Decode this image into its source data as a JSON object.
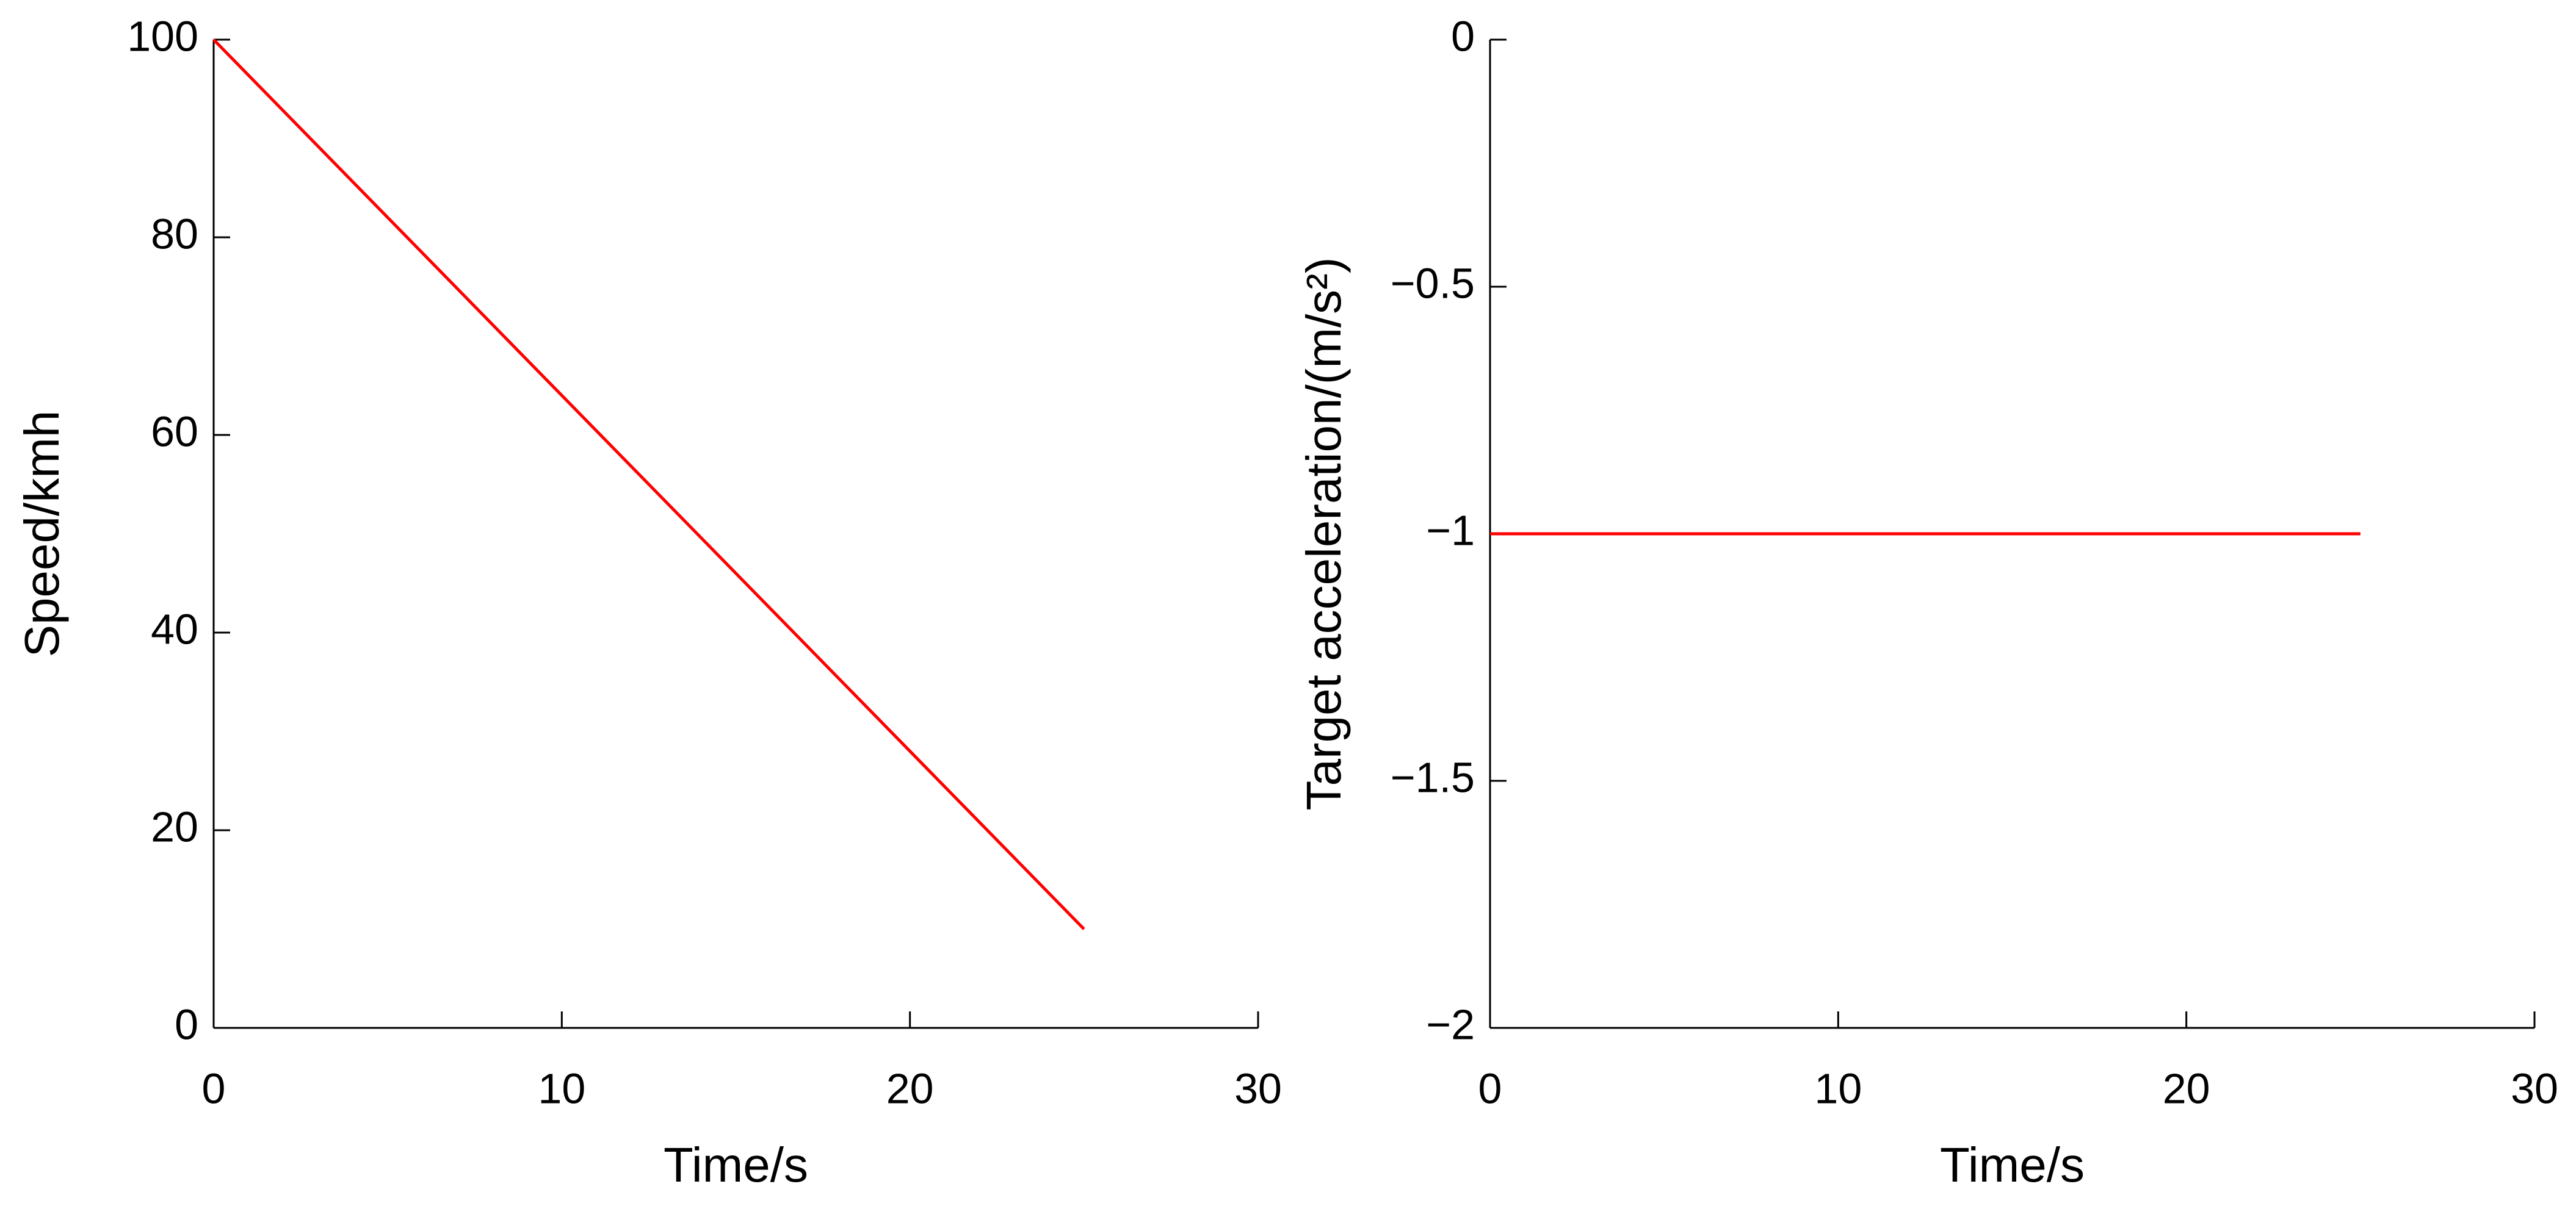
{
  "chart_data": [
    {
      "type": "line",
      "xlabel": "Time/s",
      "ylabel": "Speed/kmh",
      "xlim": [
        0,
        30
      ],
      "ylim": [
        0,
        100
      ],
      "xticks": [
        0,
        10,
        20,
        30
      ],
      "yticks": [
        0,
        20,
        40,
        60,
        80,
        100
      ],
      "series": [
        {
          "color": "#ff0000",
          "x": [
            0,
            25
          ],
          "values": [
            100,
            10
          ]
        }
      ]
    },
    {
      "type": "line",
      "xlabel": "Time/s",
      "ylabel": "Target acceleration/(m/s²)",
      "xlim": [
        0,
        30
      ],
      "ylim": [
        -2,
        0
      ],
      "xticks": [
        0,
        10,
        20,
        30
      ],
      "yticks": [
        {
          "value": -2,
          "label": "−2"
        },
        {
          "value": -1.5,
          "label": "−1.5"
        },
        {
          "value": -1,
          "label": "−1"
        },
        {
          "value": -0.5,
          "label": "−0.5"
        },
        0
      ],
      "series": [
        {
          "color": "#ff0000",
          "x": [
            0,
            25
          ],
          "values": [
            -1,
            -1
          ]
        }
      ]
    }
  ]
}
